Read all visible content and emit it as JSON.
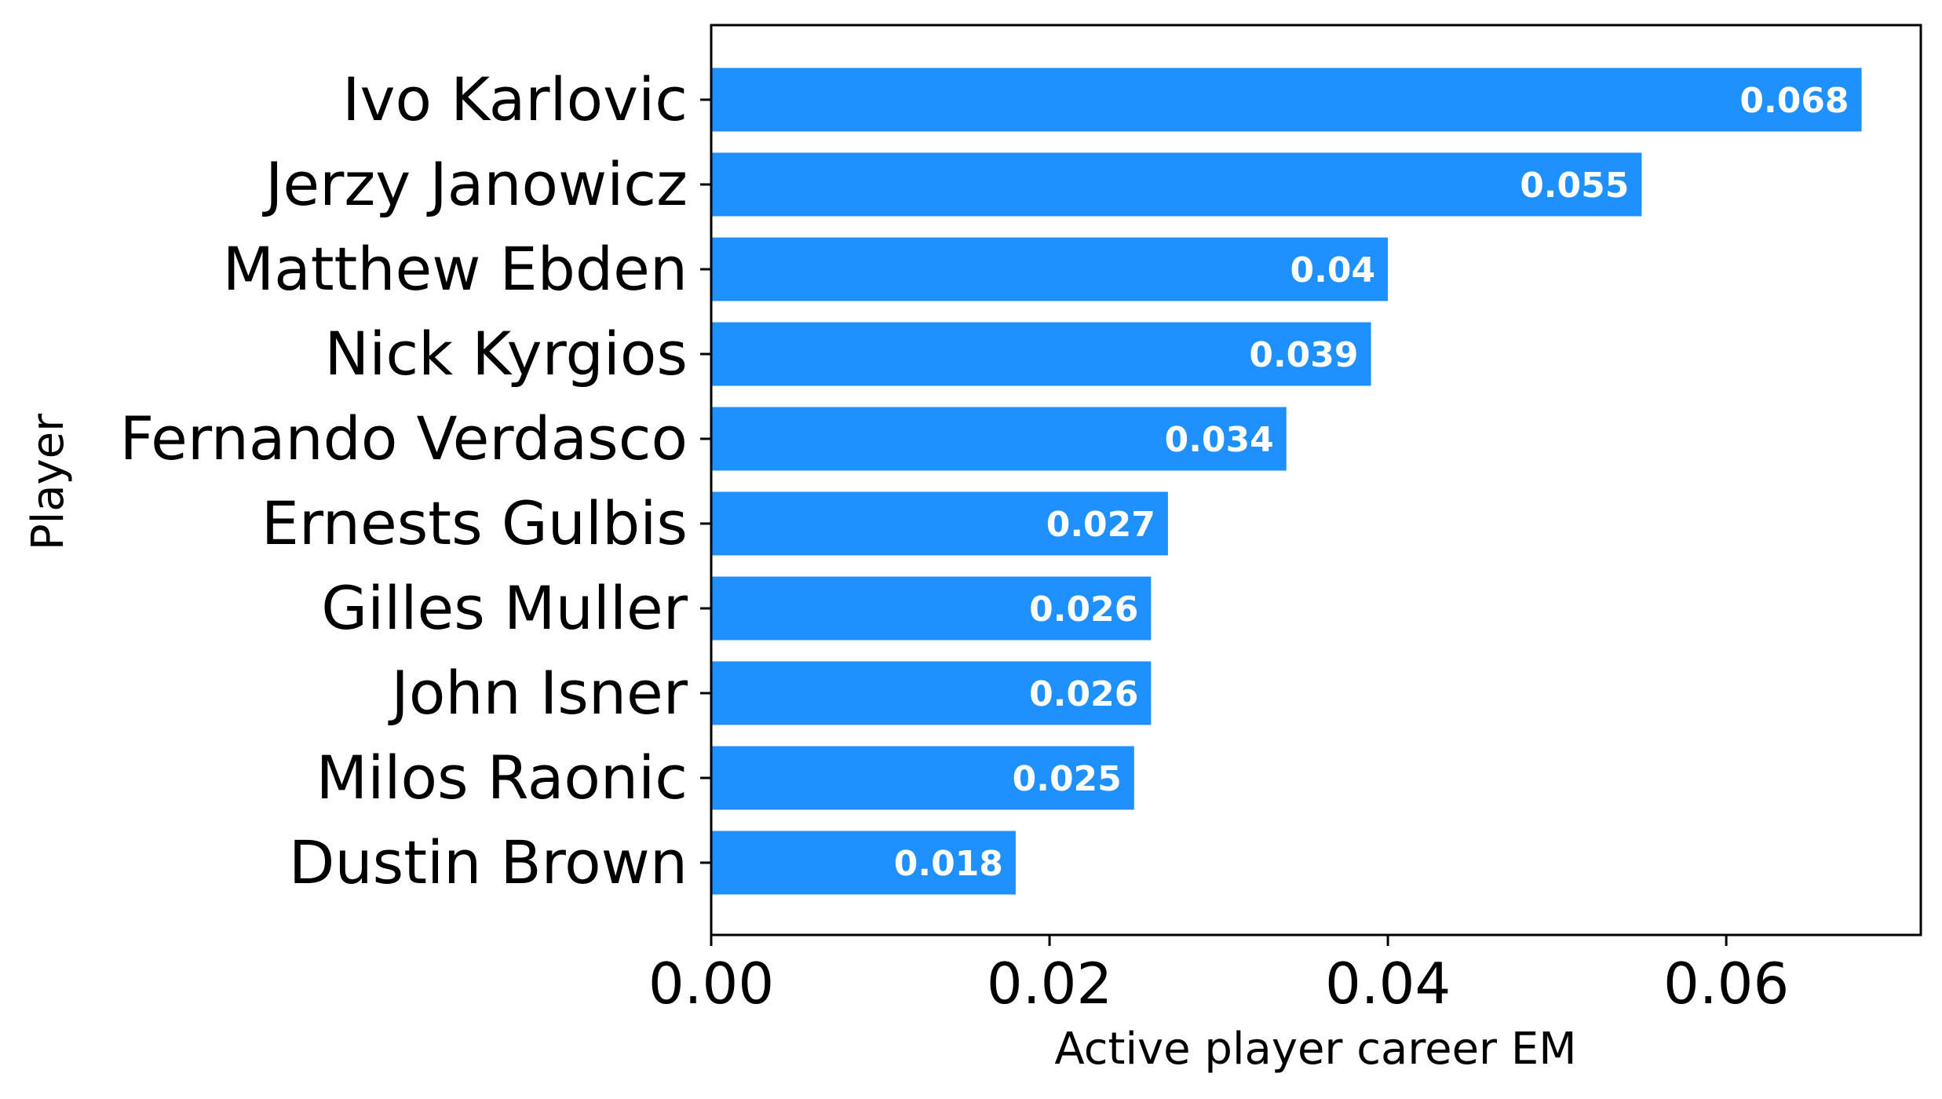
{
  "chart_data": {
    "type": "bar",
    "orientation": "horizontal",
    "categories": [
      "Ivo Karlovic",
      "Jerzy Janowicz",
      "Matthew Ebden",
      "Nick Kyrgios",
      "Fernando Verdasco",
      "Ernests Gulbis",
      "Gilles Muller",
      "John Isner",
      "Milos Raonic",
      "Dustin Brown"
    ],
    "values": [
      0.068,
      0.055,
      0.04,
      0.039,
      0.034,
      0.027,
      0.026,
      0.026,
      0.025,
      0.018
    ],
    "value_labels": [
      "0.068",
      "0.055",
      "0.04",
      "0.039",
      "0.034",
      "0.027",
      "0.026",
      "0.026",
      "0.025",
      "0.018"
    ],
    "xlabel": "Active player career EM",
    "ylabel": "Player",
    "xlim": [
      0,
      0.0715
    ],
    "xticks": [
      0,
      0.02,
      0.04,
      0.06
    ],
    "xtick_labels": [
      "0.00",
      "0.02",
      "0.04",
      "0.06"
    ],
    "grid": false,
    "legend": "none",
    "bar_color": "#1e90ff"
  }
}
